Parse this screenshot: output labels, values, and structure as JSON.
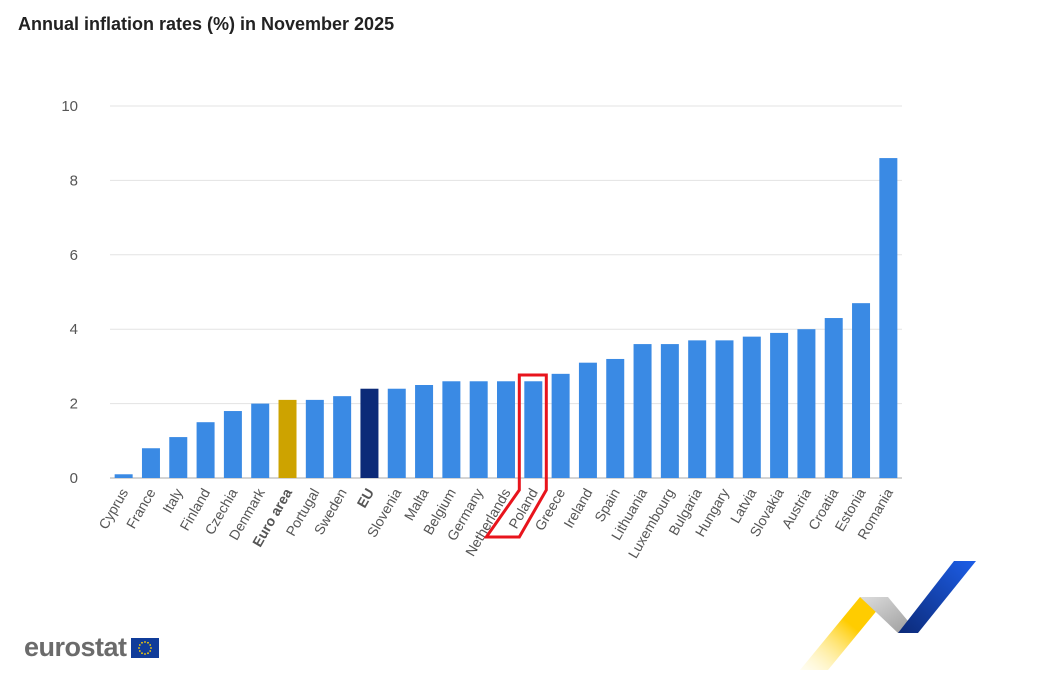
{
  "chart_data": {
    "type": "bar",
    "title": "Annual inflation rates (%) in November 2025",
    "xlabel": "",
    "ylabel": "",
    "ylim": [
      0,
      10
    ],
    "yticks": [
      0,
      2,
      4,
      6,
      8,
      10
    ],
    "grid": true,
    "categories": [
      "Cyprus",
      "France",
      "Italy",
      "Finland",
      "Czechia",
      "Denmark",
      "Euro area",
      "Portugal",
      "Sweden",
      "EU",
      "Slovenia",
      "Malta",
      "Belgium",
      "Germany",
      "Netherlands",
      "Poland",
      "Greece",
      "Ireland",
      "Spain",
      "Lithuania",
      "Luxembourg",
      "Bulgaria",
      "Hungary",
      "Latvia",
      "Slovakia",
      "Austria",
      "Croatia",
      "Estonia",
      "Romania"
    ],
    "values": [
      0.1,
      0.8,
      1.1,
      1.5,
      1.8,
      2.0,
      2.1,
      2.1,
      2.2,
      2.4,
      2.4,
      2.5,
      2.6,
      2.6,
      2.6,
      2.6,
      2.8,
      3.1,
      3.2,
      3.6,
      3.6,
      3.7,
      3.7,
      3.8,
      3.9,
      4.0,
      4.3,
      4.7,
      8.6
    ],
    "bold_categories": [
      "Euro area",
      "EU"
    ],
    "colors": {
      "default": "#3a8ae4",
      "Euro area": "#cda300",
      "EU": "#0c2a78",
      "highlight": "#e8141c"
    },
    "highlighted_category": "Poland"
  },
  "branding": {
    "logo": "eurostat"
  }
}
